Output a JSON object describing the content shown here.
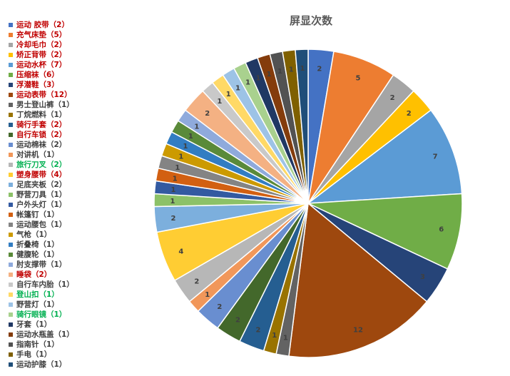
{
  "chart_data": {
    "type": "pie",
    "title": "屏显次数",
    "legend_position": "left",
    "slices": [
      {
        "label": "运动 胶带",
        "value": 2,
        "color": "#4472c4",
        "label_color": "#c00000"
      },
      {
        "label": "充气床垫",
        "value": 5,
        "color": "#ed7d31",
        "label_color": "#c00000"
      },
      {
        "label": "冷却毛巾",
        "value": 2,
        "color": "#a5a5a5",
        "label_color": "#c00000"
      },
      {
        "label": "矫正背带",
        "value": 2,
        "color": "#ffc000",
        "label_color": "#c00000"
      },
      {
        "label": "运动水杯",
        "value": 7,
        "color": "#5b9bd5",
        "label_color": "#c00000"
      },
      {
        "label": "压缩袜",
        "value": 6,
        "color": "#70ad47",
        "label_color": "#c00000"
      },
      {
        "label": "浮潜鞋",
        "value": 3,
        "color": "#264478",
        "label_color": "#c00000"
      },
      {
        "label": "运动表带",
        "value": 12,
        "color": "#9e480e",
        "label_color": "#c00000"
      },
      {
        "label": "男士登山裤",
        "value": 1,
        "color": "#636363",
        "label_color": "#404040"
      },
      {
        "label": "丁烷燃料",
        "value": 1,
        "color": "#997300",
        "label_color": "#404040"
      },
      {
        "label": "骑行手套",
        "value": 2,
        "color": "#255e91",
        "label_color": "#c00000"
      },
      {
        "label": "自行车锁",
        "value": 2,
        "color": "#43682b",
        "label_color": "#c00000"
      },
      {
        "label": "运动棉袜",
        "value": 2,
        "color": "#698ed0",
        "label_color": "#404040"
      },
      {
        "label": "对讲机",
        "value": 1,
        "color": "#f1975a",
        "label_color": "#404040"
      },
      {
        "label": "旅行刀叉",
        "value": 2,
        "color": "#b7b7b7",
        "label_color": "#00b050"
      },
      {
        "label": "塑身腰带",
        "value": 4,
        "color": "#ffcd33",
        "label_color": "#c00000"
      },
      {
        "label": "足底夹板",
        "value": 2,
        "color": "#7cafdd",
        "label_color": "#404040"
      },
      {
        "label": "野营刀具",
        "value": 1,
        "color": "#8cc168",
        "label_color": "#404040"
      },
      {
        "label": "户外头灯",
        "value": 1,
        "color": "#335aa1",
        "label_color": "#404040"
      },
      {
        "label": "帐篷钉",
        "value": 1,
        "color": "#d26012",
        "label_color": "#404040"
      },
      {
        "label": "运动腰包",
        "value": 1,
        "color": "#848484",
        "label_color": "#404040"
      },
      {
        "label": "气枪",
        "value": 1,
        "color": "#cc9a00",
        "label_color": "#404040"
      },
      {
        "label": "折叠椅",
        "value": 1,
        "color": "#327dc2",
        "label_color": "#404040"
      },
      {
        "label": "健腹轮",
        "value": 1,
        "color": "#5a8a39",
        "label_color": "#404040"
      },
      {
        "label": "肘支撑带",
        "value": 1,
        "color": "#8faadc",
        "label_color": "#404040"
      },
      {
        "label": "睡袋",
        "value": 2,
        "color": "#f4b183",
        "label_color": "#c00000"
      },
      {
        "label": "自行车内胎",
        "value": 1,
        "color": "#c9c9c9",
        "label_color": "#404040"
      },
      {
        "label": "登山扣",
        "value": 1,
        "color": "#ffd966",
        "label_color": "#00b050"
      },
      {
        "label": "野营灯",
        "value": 1,
        "color": "#9dc3e6",
        "label_color": "#404040"
      },
      {
        "label": "骑行眼镜",
        "value": 1,
        "color": "#a9d18e",
        "label_color": "#00b050"
      },
      {
        "label": "牙套",
        "value": 1,
        "color": "#203864",
        "label_color": "#404040"
      },
      {
        "label": "运动水瓶盖",
        "value": 1,
        "color": "#843c0c",
        "label_color": "#404040"
      },
      {
        "label": "指南针",
        "value": 1,
        "color": "#525252",
        "label_color": "#404040"
      },
      {
        "label": "手电",
        "value": 1,
        "color": "#7f6000",
        "label_color": "#404040"
      },
      {
        "label": "运动护膝",
        "value": 1,
        "color": "#1f4e79",
        "label_color": "#404040"
      }
    ]
  }
}
